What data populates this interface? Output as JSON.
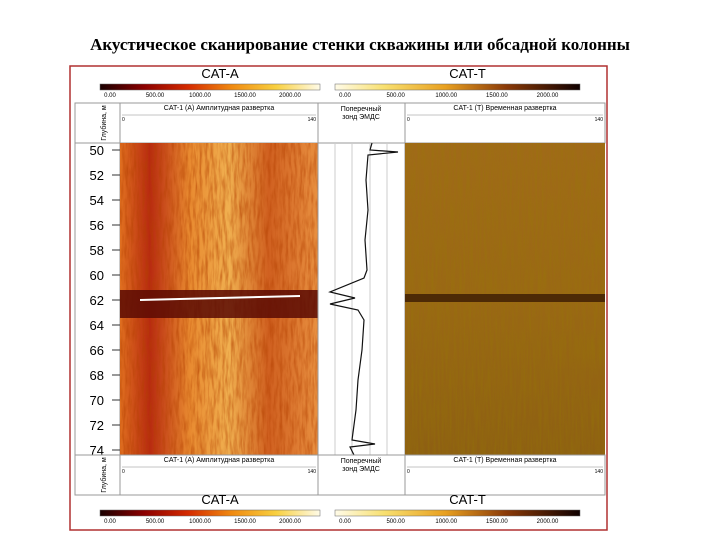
{
  "title": "Акустическое сканирование стенки скважины или обсадной колонны",
  "legend_top": {
    "left": {
      "label": "CAT-A",
      "scale": [
        "0.00",
        "500.00",
        "1000.00",
        "1500.00",
        "2000.00"
      ]
    },
    "right": {
      "label": "CAT-T",
      "scale": [
        "0.00",
        "500.00",
        "1000.00",
        "1500.00",
        "2000.00"
      ]
    }
  },
  "header_top": {
    "depth": "Глубина, м",
    "panel_a": "CAT-1 (A) Амплитудная развертка",
    "scale_a": [
      "0",
      "140"
    ],
    "middle": [
      "Поперечный",
      "зонд ЭМДС"
    ],
    "panel_t": "CAT-1 (T) Временная развертка",
    "scale_t": [
      "0",
      "140"
    ]
  },
  "depth_labels": [
    "50",
    "52",
    "54",
    "56",
    "58",
    "60",
    "62",
    "64",
    "66",
    "68",
    "70",
    "72",
    "74"
  ],
  "header_bottom": {
    "depth": "Глубина, м",
    "panel_a": "CAT-1 (A) Амплитудная развертка",
    "scale_a": [
      "0",
      "140"
    ],
    "middle": [
      "Поперечный",
      "зонд ЭМДС"
    ],
    "panel_t": "CAT-1 (T) Временная развертка",
    "scale_t": [
      "0",
      "140"
    ]
  },
  "legend_bottom": {
    "left": {
      "label": "CAT-A",
      "scale": [
        "0.00",
        "500.00",
        "1000.00",
        "1500.00",
        "2000.00"
      ]
    },
    "right": {
      "label": "CAT-T",
      "scale": [
        "0.00",
        "500.00",
        "1000.00",
        "1500.00",
        "2000.00"
      ]
    }
  }
}
